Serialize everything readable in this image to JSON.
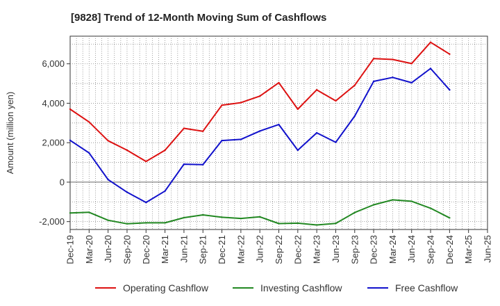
{
  "chart_data": {
    "type": "line",
    "title": "[9828]  Trend of 12-Month Moving Sum of Cashflows",
    "xlabel": "",
    "ylabel": "Amount (million yen)",
    "ylim": [
      -2400,
      7400
    ],
    "yticks": [
      -2000,
      0,
      2000,
      4000,
      6000
    ],
    "ytick_labels": [
      "-2,000",
      "0",
      "2,000",
      "4,000",
      "6,000"
    ],
    "categories": [
      "Dec-19",
      "Mar-20",
      "Jun-20",
      "Sep-20",
      "Dec-20",
      "Mar-21",
      "Jun-21",
      "Sep-21",
      "Dec-21",
      "Mar-22",
      "Jun-22",
      "Sep-22",
      "Dec-22",
      "Mar-23",
      "Jun-23",
      "Sep-23",
      "Dec-23",
      "Mar-24",
      "Jun-24",
      "Sep-24",
      "Dec-24",
      "Mar-25"
    ],
    "x_tick_labels": [
      "Dec-19",
      "Mar-20",
      "Jun-20",
      "Sep-20",
      "Dec-20",
      "Mar-21",
      "Jun-21",
      "Sep-21",
      "Dec-21",
      "Mar-22",
      "Jun-22",
      "Sep-22",
      "Dec-22",
      "Mar-23",
      "Jun-23",
      "Sep-23",
      "Dec-23",
      "Mar-24",
      "Jun-24",
      "Sep-24",
      "Dec-24",
      "Mar-25",
      "Jun-25"
    ],
    "grid": true,
    "legend_position": "bottom",
    "series": [
      {
        "name": "Operating Cashflow",
        "color": "#dd1111",
        "values": [
          3700,
          3050,
          2100,
          1620,
          1050,
          1620,
          2730,
          2580,
          3900,
          4030,
          4360,
          5040,
          3700,
          4680,
          4120,
          4910,
          6260,
          6220,
          6010,
          7090,
          6490,
          null
        ]
      },
      {
        "name": "Investing Cashflow",
        "color": "#228822",
        "values": [
          -1560,
          -1530,
          -1930,
          -2110,
          -2060,
          -2060,
          -1800,
          -1660,
          -1780,
          -1840,
          -1760,
          -2100,
          -2080,
          -2170,
          -2090,
          -1540,
          -1150,
          -900,
          -970,
          -1320,
          -1810,
          null
        ]
      },
      {
        "name": "Free Cashflow",
        "color": "#1111cc",
        "values": [
          2120,
          1480,
          130,
          -510,
          -1030,
          -450,
          910,
          890,
          2110,
          2170,
          2590,
          2920,
          1620,
          2500,
          2020,
          3350,
          5110,
          5310,
          5040,
          5760,
          4680,
          null
        ]
      }
    ]
  }
}
